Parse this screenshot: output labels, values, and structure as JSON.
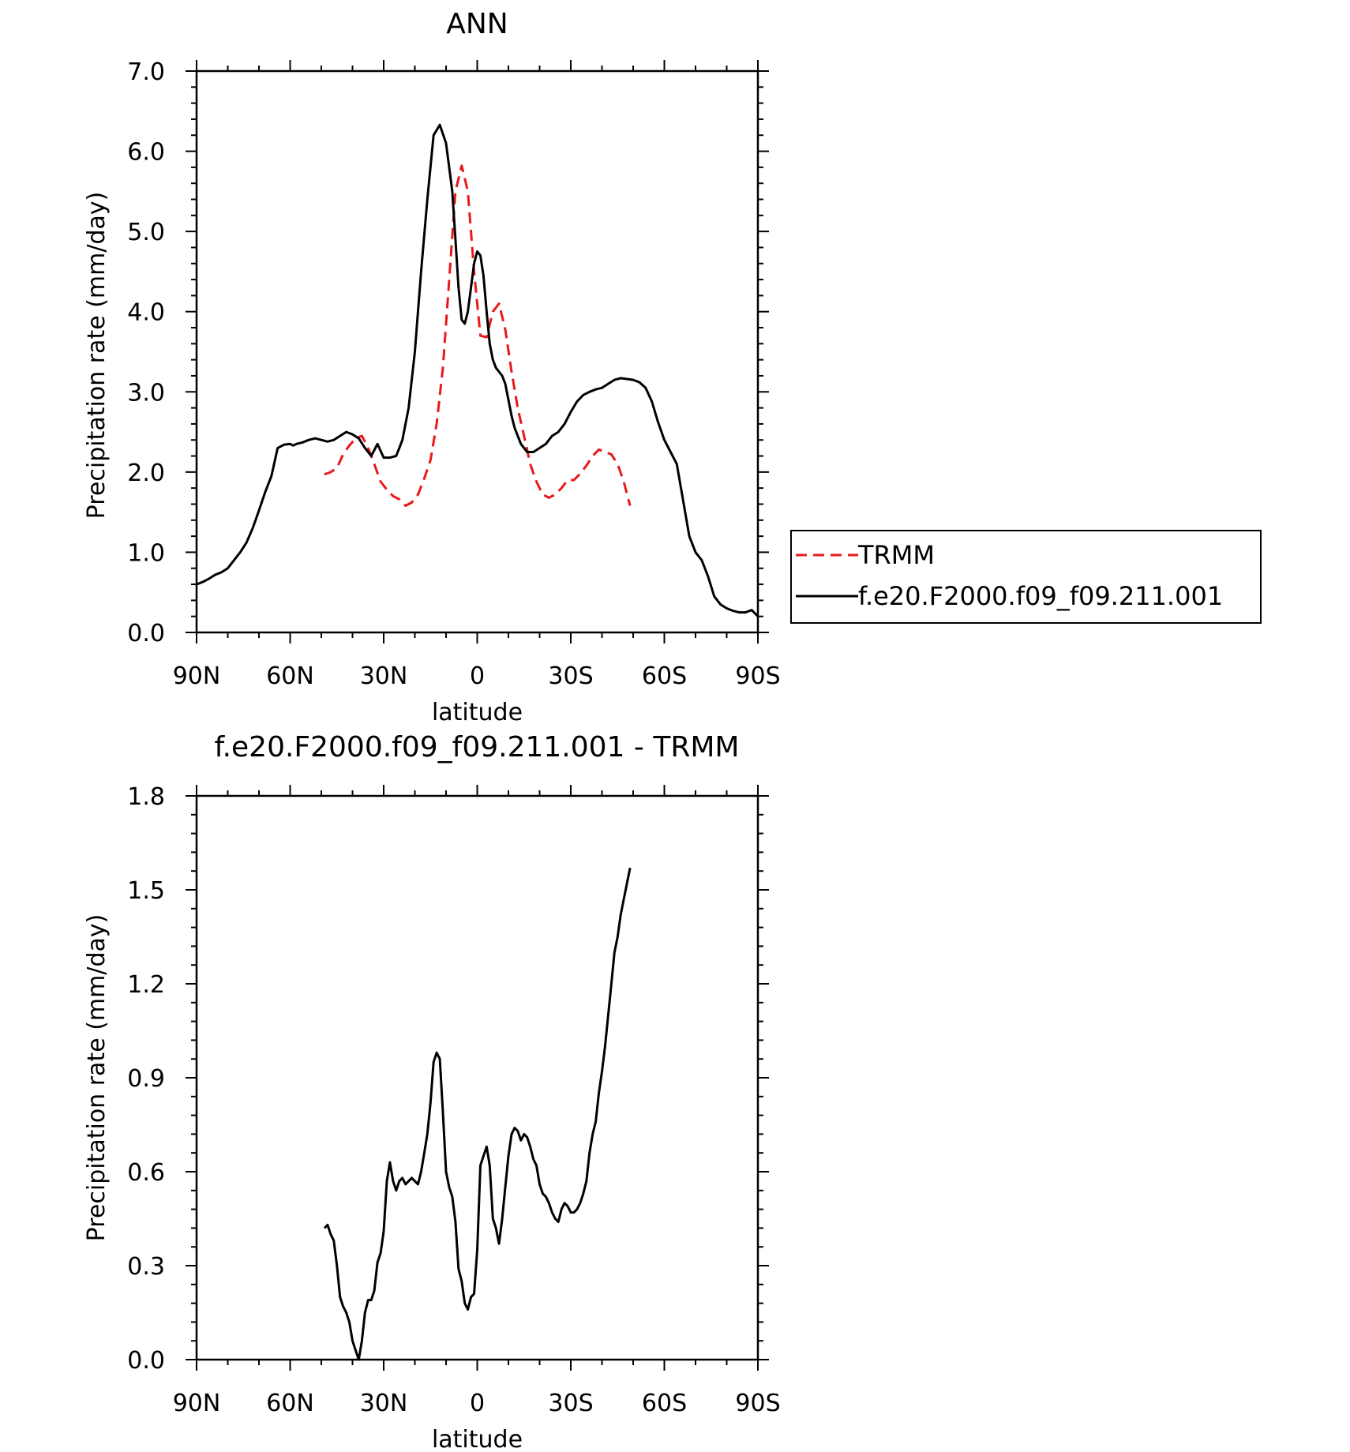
{
  "chart_data": [
    {
      "type": "line",
      "title": "ANN",
      "xlabel": "latitude",
      "ylabel": "Precipitation rate (mm/day)",
      "x_reversed": true,
      "xlim": [
        90,
        -90
      ],
      "ylim": [
        0.0,
        7.0
      ],
      "x_ticks": [
        90,
        60,
        30,
        0,
        -30,
        -60,
        -90
      ],
      "x_tick_labels": [
        "90N",
        "60N",
        "30N",
        "0",
        "30S",
        "60S",
        "90S"
      ],
      "y_ticks": [
        0,
        1,
        2,
        3,
        4,
        5,
        6,
        7
      ],
      "y_tick_labels": [
        "0.0",
        "1.0",
        "2.0",
        "3.0",
        "4.0",
        "5.0",
        "6.0",
        "7.0"
      ],
      "legend_position": "right",
      "series": [
        {
          "name": "TRMM",
          "color": "#e8191b",
          "dash": "dashed",
          "x": [
            49,
            47,
            45,
            43,
            41,
            39,
            37,
            35,
            33,
            31,
            29,
            27,
            25,
            23,
            21,
            19,
            17,
            15,
            13,
            11,
            9,
            7,
            5,
            3,
            1,
            -1,
            -3,
            -5,
            -7,
            -9,
            -11,
            -13,
            -15,
            -17,
            -19,
            -21,
            -23,
            -25,
            -27,
            -29,
            -31,
            -33,
            -35,
            -37,
            -39,
            -41,
            -43,
            -45,
            -47,
            -49
          ],
          "y": [
            1.97,
            2.0,
            2.05,
            2.22,
            2.33,
            2.42,
            2.45,
            2.3,
            2.1,
            1.88,
            1.78,
            1.7,
            1.66,
            1.58,
            1.62,
            1.72,
            1.92,
            2.15,
            2.6,
            3.3,
            4.4,
            5.5,
            5.82,
            5.5,
            4.5,
            3.7,
            3.68,
            4.0,
            4.1,
            3.78,
            3.25,
            2.8,
            2.45,
            2.1,
            1.88,
            1.72,
            1.68,
            1.72,
            1.8,
            1.9,
            1.9,
            1.98,
            2.08,
            2.2,
            2.28,
            2.25,
            2.22,
            2.1,
            1.88,
            1.58
          ]
        },
        {
          "name": "f.e20.F2000.f09_f09.211.001",
          "color": "#000000",
          "dash": "solid",
          "x": [
            90,
            88,
            86,
            84,
            82,
            80,
            78,
            76,
            74,
            72,
            70,
            68,
            66,
            64,
            62,
            60,
            59,
            58,
            56,
            54,
            52,
            50,
            48,
            46,
            44,
            42,
            40,
            38,
            36,
            34,
            32,
            30,
            28,
            26,
            25,
            24,
            22,
            20,
            18,
            16,
            14,
            12,
            10,
            8,
            7,
            6,
            5,
            4,
            3,
            2,
            1,
            0,
            -1,
            -2,
            -3,
            -4,
            -5,
            -6,
            -7,
            -8,
            -9,
            -10,
            -11,
            -12,
            -14,
            -16,
            -18,
            -20,
            -22,
            -24,
            -26,
            -28,
            -30,
            -32,
            -34,
            -36,
            -38,
            -40,
            -42,
            -44,
            -46,
            -48,
            -50,
            -52,
            -54,
            -56,
            -58,
            -60,
            -62,
            -64,
            -66,
            -68,
            -70,
            -72,
            -74,
            -76,
            -78,
            -80,
            -82,
            -84,
            -86,
            -88,
            -90
          ],
          "y": [
            0.6,
            0.63,
            0.67,
            0.72,
            0.75,
            0.8,
            0.9,
            1.0,
            1.12,
            1.3,
            1.52,
            1.75,
            1.95,
            2.3,
            2.34,
            2.35,
            2.33,
            2.35,
            2.37,
            2.4,
            2.42,
            2.4,
            2.38,
            2.4,
            2.45,
            2.5,
            2.47,
            2.42,
            2.3,
            2.2,
            2.35,
            2.18,
            2.18,
            2.2,
            2.3,
            2.4,
            2.8,
            3.5,
            4.5,
            5.4,
            6.2,
            6.33,
            6.1,
            5.5,
            4.9,
            4.3,
            3.9,
            3.85,
            4.0,
            4.3,
            4.6,
            4.75,
            4.7,
            4.45,
            4.0,
            3.6,
            3.4,
            3.3,
            3.25,
            3.2,
            3.1,
            2.9,
            2.7,
            2.55,
            2.35,
            2.25,
            2.25,
            2.3,
            2.35,
            2.45,
            2.5,
            2.6,
            2.75,
            2.88,
            2.96,
            3.0,
            3.03,
            3.05,
            3.1,
            3.15,
            3.17,
            3.16,
            3.15,
            3.12,
            3.05,
            2.88,
            2.62,
            2.4,
            2.25,
            2.1,
            1.65,
            1.2,
            1.0,
            0.9,
            0.7,
            0.45,
            0.35,
            0.3,
            0.27,
            0.25,
            0.25,
            0.28,
            0.2
          ]
        }
      ]
    },
    {
      "type": "line",
      "title": "f.e20.F2000.f09_f09.211.001 - TRMM",
      "xlabel": "latitude",
      "ylabel": "Precipitation rate (mm/day)",
      "x_reversed": true,
      "xlim": [
        90,
        -90
      ],
      "ylim": [
        0.0,
        1.8
      ],
      "x_ticks": [
        90,
        60,
        30,
        0,
        -30,
        -60,
        -90
      ],
      "x_tick_labels": [
        "90N",
        "60N",
        "30N",
        "0",
        "30S",
        "60S",
        "90S"
      ],
      "y_ticks": [
        0,
        0.3,
        0.6,
        0.9,
        1.2,
        1.5,
        1.8
      ],
      "y_tick_labels": [
        "0.0",
        "0.3",
        "0.6",
        "0.9",
        "1.2",
        "1.5",
        "1.8"
      ],
      "series": [
        {
          "color": "#000000",
          "dash": "solid",
          "x": [
            49,
            48,
            47,
            46,
            45,
            44,
            43,
            42,
            41,
            40,
            39,
            38,
            37,
            36,
            35,
            34,
            33,
            32,
            31,
            30,
            29,
            28,
            27,
            26,
            25,
            24,
            23,
            22,
            21,
            20,
            19,
            18,
            17,
            16,
            15,
            14,
            13,
            12,
            11,
            10,
            9,
            8,
            7,
            6,
            5,
            4,
            3,
            2,
            1,
            0,
            -1,
            -2,
            -3,
            -4,
            -5,
            -6,
            -7,
            -8,
            -9,
            -10,
            -11,
            -12,
            -13,
            -14,
            -15,
            -16,
            -17,
            -18,
            -19,
            -20,
            -21,
            -22,
            -23,
            -24,
            -25,
            -26,
            -27,
            -28,
            -29,
            -30,
            -31,
            -32,
            -33,
            -34,
            -35,
            -36,
            -37,
            -38,
            -39,
            -40,
            -41,
            -42,
            -43,
            -44,
            -45,
            -46,
            -47,
            -48,
            -49
          ],
          "y": [
            0.42,
            0.43,
            0.4,
            0.38,
            0.3,
            0.2,
            0.17,
            0.15,
            0.12,
            0.06,
            0.03,
            0.0,
            0.06,
            0.15,
            0.19,
            0.19,
            0.22,
            0.31,
            0.34,
            0.41,
            0.57,
            0.63,
            0.57,
            0.54,
            0.57,
            0.58,
            0.56,
            0.57,
            0.58,
            0.57,
            0.56,
            0.6,
            0.66,
            0.72,
            0.82,
            0.95,
            0.98,
            0.96,
            0.79,
            0.6,
            0.55,
            0.52,
            0.44,
            0.29,
            0.25,
            0.18,
            0.16,
            0.2,
            0.21,
            0.35,
            0.62,
            0.65,
            0.68,
            0.62,
            0.45,
            0.42,
            0.37,
            0.45,
            0.55,
            0.65,
            0.72,
            0.74,
            0.73,
            0.7,
            0.72,
            0.71,
            0.68,
            0.64,
            0.62,
            0.56,
            0.53,
            0.52,
            0.5,
            0.47,
            0.45,
            0.44,
            0.48,
            0.5,
            0.49,
            0.47,
            0.47,
            0.48,
            0.5,
            0.53,
            0.57,
            0.66,
            0.72,
            0.76,
            0.85,
            0.92,
            1.0,
            1.1,
            1.2,
            1.3,
            1.35,
            1.42,
            1.47,
            1.52,
            1.57
          ]
        }
      ]
    }
  ]
}
